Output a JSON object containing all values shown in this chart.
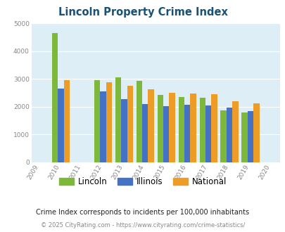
{
  "title": "Lincoln Property Crime Index",
  "years": [
    2009,
    2010,
    2011,
    2012,
    2013,
    2014,
    2015,
    2016,
    2017,
    2018,
    2019,
    2020
  ],
  "lincoln": [
    null,
    4650,
    null,
    2950,
    3050,
    2920,
    2430,
    2350,
    2330,
    1870,
    1800,
    null
  ],
  "illinois": [
    null,
    2640,
    null,
    2560,
    2285,
    2090,
    2020,
    2060,
    2040,
    1960,
    1850,
    null
  ],
  "national": [
    null,
    2950,
    null,
    2880,
    2740,
    2620,
    2490,
    2480,
    2455,
    2185,
    2130,
    null
  ],
  "lincoln_color": "#7db83a",
  "illinois_color": "#4472c4",
  "national_color": "#ed9c28",
  "bg_color": "#ddeef6",
  "ylim": [
    0,
    5000
  ],
  "yticks": [
    0,
    1000,
    2000,
    3000,
    4000,
    5000
  ],
  "subtitle": "Crime Index corresponds to incidents per 100,000 inhabitants",
  "footer": "© 2025 CityRating.com - https://www.cityrating.com/crime-statistics/",
  "legend_labels": [
    "Lincoln",
    "Illinois",
    "National"
  ],
  "title_color": "#1a5276",
  "subtitle_color": "#222222",
  "footer_color": "#888888"
}
